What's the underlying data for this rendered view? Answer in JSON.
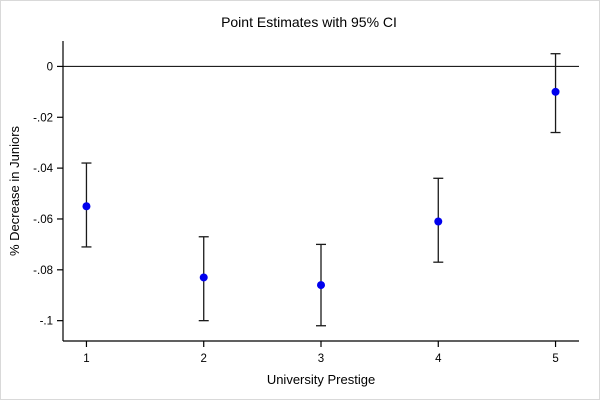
{
  "chart_data": {
    "type": "scatter",
    "title": "Point Estimates with 95% CI",
    "xlabel": "University Prestige",
    "ylabel": "% Decrease in Juniors",
    "x": [
      1,
      2,
      3,
      4,
      5
    ],
    "series": [
      {
        "name": "point_estimate",
        "values": [
          -0.055,
          -0.083,
          -0.086,
          -0.061,
          -0.01
        ]
      }
    ],
    "ci_low": [
      -0.071,
      -0.1,
      -0.102,
      -0.077,
      -0.026
    ],
    "ci_high": [
      -0.038,
      -0.067,
      -0.07,
      -0.044,
      0.005
    ],
    "x_tick_labels": [
      "1",
      "2",
      "3",
      "4",
      "5"
    ],
    "y_ticks": [
      0,
      -0.02,
      -0.04,
      -0.06,
      -0.08,
      -0.1
    ],
    "y_tick_labels": [
      "0",
      "-.02",
      "-.04",
      "-.06",
      "-.08",
      "-.1"
    ],
    "xlim": [
      0.8,
      5.2
    ],
    "ylim": [
      -0.108,
      0.01
    ],
    "reference_line_y": 0,
    "grid": false,
    "legend_position": "none",
    "point_color": "#0000ee",
    "errorbar_color": "#1a1a1a",
    "axis_color": "#000000"
  }
}
